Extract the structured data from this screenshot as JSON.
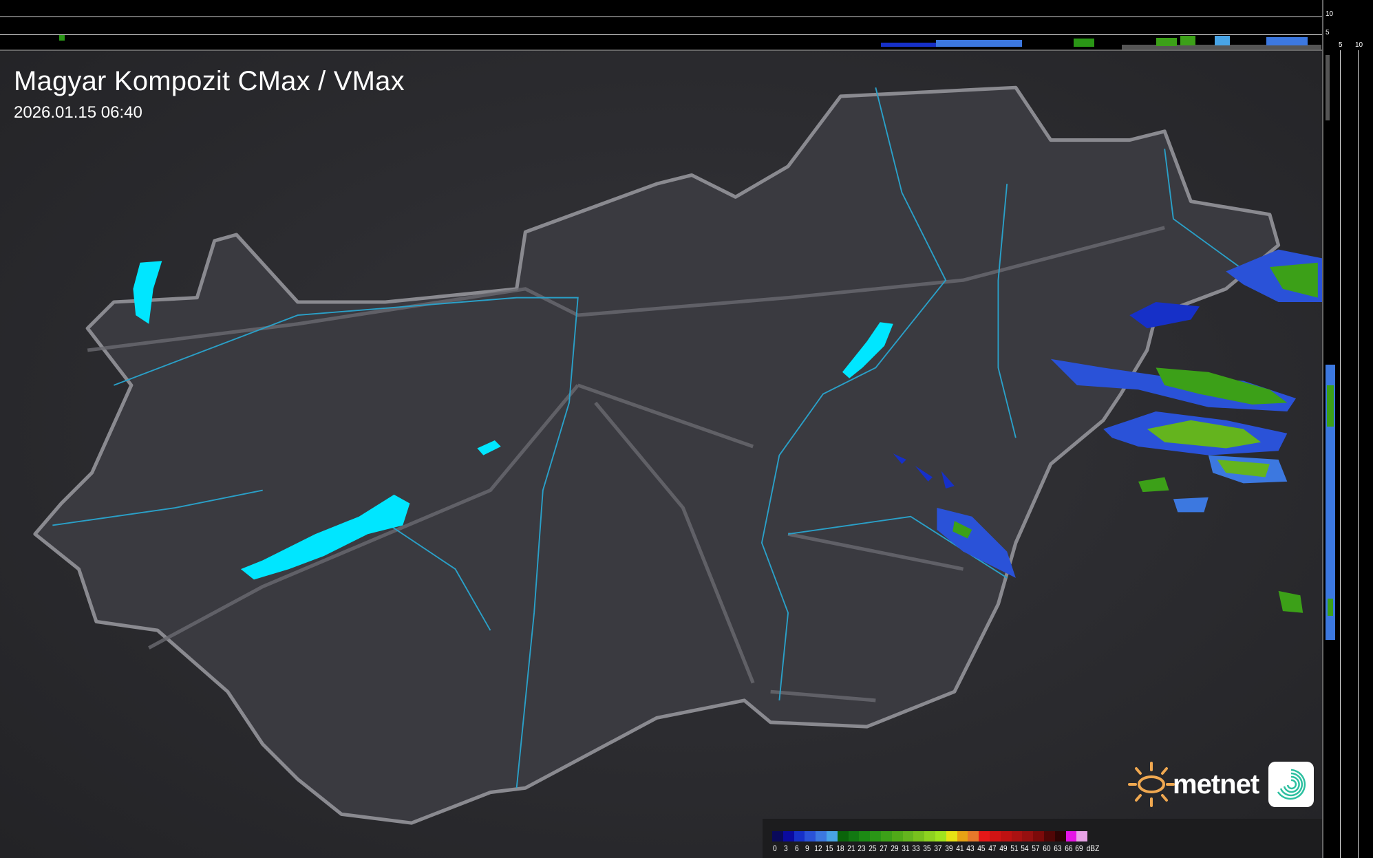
{
  "header": {
    "title": "Magyar Kompozit CMax / VMax",
    "timestamp": "2026.01.15 06:40"
  },
  "profile_axes": {
    "top_ticks": [
      "10",
      "5"
    ],
    "right_ticks": [
      "5",
      "10"
    ]
  },
  "legend": {
    "unit": "dBZ",
    "labels": [
      "0",
      "3",
      "6",
      "9",
      "12",
      "15",
      "18",
      "21",
      "23",
      "25",
      "27",
      "29",
      "31",
      "33",
      "35",
      "37",
      "39",
      "41",
      "43",
      "45",
      "47",
      "49",
      "51",
      "54",
      "57",
      "60",
      "63",
      "66",
      "69"
    ],
    "colors": [
      "#0a0a5a",
      "#0a0aa0",
      "#1630c8",
      "#2a52d8",
      "#3c78e0",
      "#48a4e6",
      "#0a640a",
      "#127812",
      "#1c8a14",
      "#2a9616",
      "#3ca018",
      "#50aa18",
      "#64b41e",
      "#78c01e",
      "#8ed220",
      "#a0e41e",
      "#e6e214",
      "#e6a214",
      "#e6782a",
      "#e61818",
      "#d21414",
      "#be1212",
      "#aa1212",
      "#961010",
      "#7c0a0a",
      "#500606",
      "#2c0404",
      "#e614e6",
      "#e8a2e6",
      "#8ce6e8"
    ]
  },
  "branding": {
    "logo_text": "metnet",
    "sun_color": "#f0a850",
    "swirl_color": "#2cc0a0"
  },
  "map": {
    "region": "Hungary",
    "background_color": "#2a2a2e",
    "country_fill": "#3a3a40",
    "border_color": "#8a8a90",
    "river_color": "#2aa0c8",
    "lake_color": "#00e6ff"
  }
}
